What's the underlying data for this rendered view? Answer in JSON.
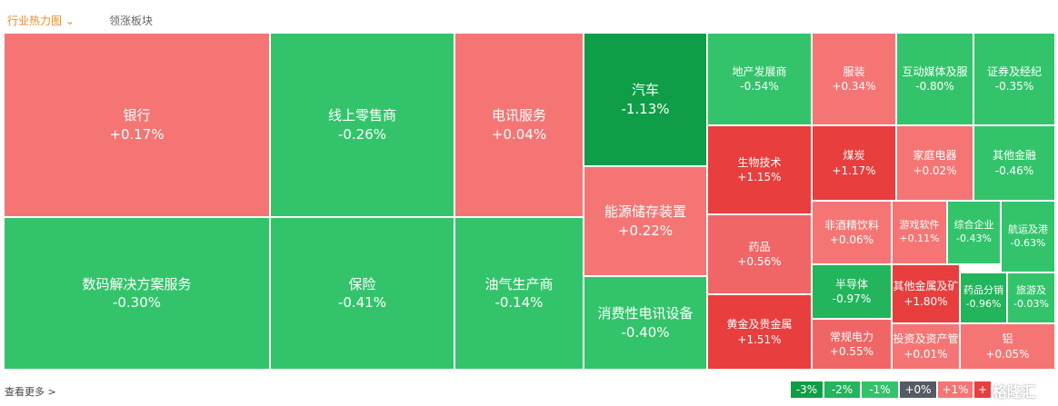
{
  "tabs": [
    {
      "label": "行业热力图",
      "active": true
    },
    {
      "label": "领涨板块",
      "active": false
    }
  ],
  "heatmap": {
    "tiles": [
      {
        "name": "银行",
        "change": "+0.17%",
        "color": "#f57575"
      },
      {
        "name": "线上零售商",
        "change": "-0.26%",
        "color": "#33c46b"
      },
      {
        "name": "电讯服务",
        "change": "+0.04%",
        "color": "#f57575"
      },
      {
        "name": "汽车",
        "change": "-1.13%",
        "color": "#0f9e47"
      },
      {
        "name": "地产发展商",
        "change": "-0.54%",
        "color": "#33c46b"
      },
      {
        "name": "服装",
        "change": "+0.34%",
        "color": "#f57575"
      },
      {
        "name": "互动媒体及服",
        "change": "-0.80%",
        "color": "#33c46b"
      },
      {
        "name": "证券及经纪",
        "change": "-0.35%",
        "color": "#33c46b"
      },
      {
        "name": "生物技术",
        "change": "+1.15%",
        "color": "#e83e3e"
      },
      {
        "name": "煤炭",
        "change": "+1.17%",
        "color": "#e83e3e"
      },
      {
        "name": "家庭电器",
        "change": "+0.02%",
        "color": "#f57575"
      },
      {
        "name": "其他金融",
        "change": "-0.46%",
        "color": "#33c46b"
      },
      {
        "name": "能源储存装置",
        "change": "+0.22%",
        "color": "#f57575"
      },
      {
        "name": "数码解决方案服务",
        "change": "-0.30%",
        "color": "#33c46b"
      },
      {
        "name": "保险",
        "change": "-0.41%",
        "color": "#33c46b"
      },
      {
        "name": "油气生产商",
        "change": "-0.14%",
        "color": "#33c46b"
      },
      {
        "name": "药品",
        "change": "+0.56%",
        "color": "#f06666"
      },
      {
        "name": "非酒精饮料",
        "change": "+0.06%",
        "color": "#f57575"
      },
      {
        "name": "游戏软件",
        "change": "+0.11%",
        "color": "#f57575"
      },
      {
        "name": "综合企业",
        "change": "-0.43%",
        "color": "#33c46b"
      },
      {
        "name": "航运及港",
        "change": "-0.63%",
        "color": "#33c46b"
      },
      {
        "name": "消费性电讯设备",
        "change": "-0.40%",
        "color": "#33c46b"
      },
      {
        "name": "黄金及贵金属",
        "change": "+1.51%",
        "color": "#e83e3e"
      },
      {
        "name": "半导体",
        "change": "-0.97%",
        "color": "#22b55b"
      },
      {
        "name": "其他金属及矿",
        "change": "+1.80%",
        "color": "#e83e3e"
      },
      {
        "name": "药品分销",
        "change": "-0.96%",
        "color": "#22b55b"
      },
      {
        "name": "旅游及",
        "change": "-0.03%",
        "color": "#33c46b"
      },
      {
        "name": "常规电力",
        "change": "+0.55%",
        "color": "#f06666"
      },
      {
        "name": "投资及资产管",
        "change": "+0.01%",
        "color": "#f57575"
      },
      {
        "name": "铝",
        "change": "+0.05%",
        "color": "#f57575"
      }
    ]
  },
  "more": "查看更多 >",
  "legend": [
    {
      "label": "-3%",
      "color": "#0f9e47"
    },
    {
      "label": "-2%",
      "color": "#22b55b"
    },
    {
      "label": "-1%",
      "color": "#33c46b"
    },
    {
      "label": "+0%",
      "color": "#555a63"
    },
    {
      "label": "+1%",
      "color": "#f57575"
    },
    {
      "label": "+",
      "color": "#e83e3e"
    }
  ],
  "logo": "格隆汇"
}
